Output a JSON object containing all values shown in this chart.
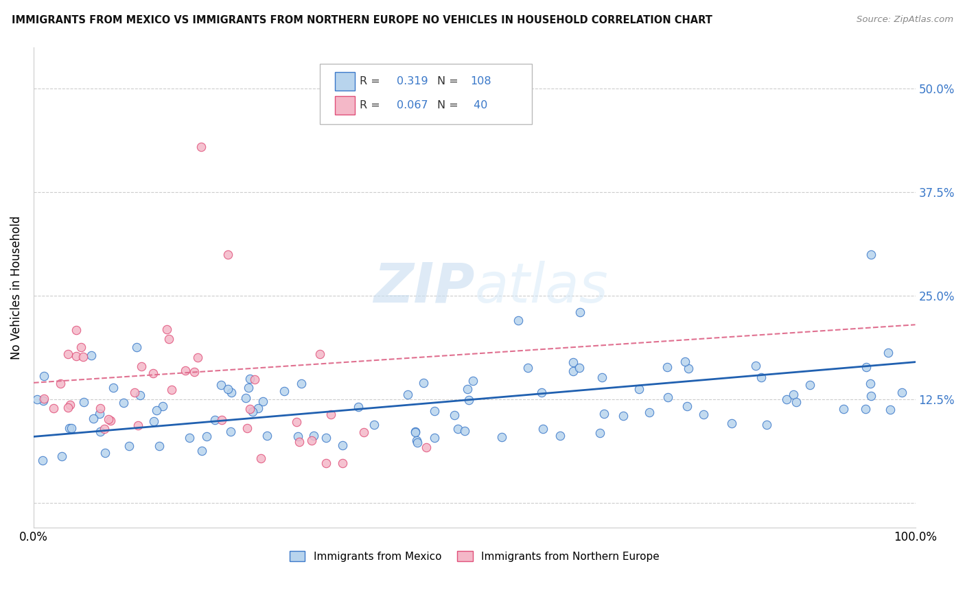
{
  "title": "IMMIGRANTS FROM MEXICO VS IMMIGRANTS FROM NORTHERN EUROPE NO VEHICLES IN HOUSEHOLD CORRELATION CHART",
  "source": "Source: ZipAtlas.com",
  "ylabel": "No Vehicles in Household",
  "xlim": [
    0,
    1.0
  ],
  "ylim": [
    -0.03,
    0.55
  ],
  "yticks": [
    0.0,
    0.125,
    0.25,
    0.375,
    0.5
  ],
  "ytick_labels_right": [
    "",
    "12.5%",
    "25.0%",
    "37.5%",
    "50.0%"
  ],
  "xticks": [
    0.0,
    1.0
  ],
  "xtick_labels": [
    "0.0%",
    "100.0%"
  ],
  "r_mexico": "0.319",
  "n_mexico": "108",
  "r_ne": "0.067",
  "n_ne": " 40",
  "mexico_fill": "#b8d4ed",
  "mexico_edge": "#3a78c9",
  "ne_fill": "#f4b8c8",
  "ne_edge": "#e0507a",
  "mexico_line_color": "#2060b0",
  "ne_line_color": "#e07090",
  "watermark_color": "#d8e8f4",
  "legend_box_color": "#cccccc",
  "blue_text": "#3a78c9",
  "dark_text": "#333333",
  "grid_color": "#cccccc"
}
